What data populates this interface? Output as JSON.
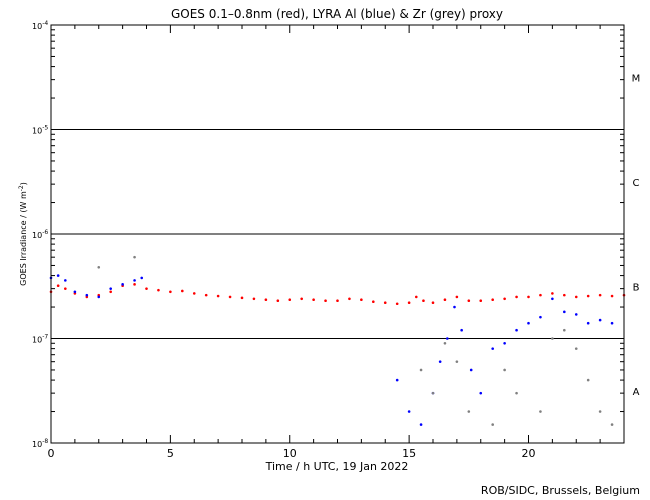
{
  "chart_data": {
    "type": "scatter",
    "title": "GOES 0.1–0.8nm (red), LYRA Al (blue) & Zr (grey) proxy",
    "xlabel": "Time / h UTC, 19 Jan 2022",
    "ylabel_main": "GOES Irradiance / (W m",
    "ylabel_sup": "-2",
    "ylabel_tail": ")",
    "xlim": [
      0,
      24
    ],
    "ylim_log10": [
      -8,
      -4
    ],
    "yscale": "log",
    "x_ticks": [
      {
        "value": 0,
        "label": "0"
      },
      {
        "value": 5,
        "label": "5"
      },
      {
        "value": 10,
        "label": "10"
      },
      {
        "value": 15,
        "label": "15"
      },
      {
        "value": 20,
        "label": "20"
      }
    ],
    "y_ticks": [
      {
        "exp": -4,
        "base": "10",
        "sup": "-4"
      },
      {
        "exp": -5,
        "base": "10",
        "sup": "-5"
      },
      {
        "exp": -6,
        "base": "10",
        "sup": "-6"
      },
      {
        "exp": -7,
        "base": "10",
        "sup": "-7"
      },
      {
        "exp": -8,
        "base": "10",
        "sup": "-8"
      }
    ],
    "flare_class_lines_log10": [
      -5,
      -6,
      -7
    ],
    "flare_classes": [
      {
        "label": "M",
        "log10_mid": -4.5
      },
      {
        "label": "C",
        "log10_mid": -5.5
      },
      {
        "label": "B",
        "log10_mid": -6.5
      },
      {
        "label": "A",
        "log10_mid": -7.5
      }
    ],
    "series": [
      {
        "color": "#ff0000",
        "points": [
          [
            0,
            2.8e-07
          ],
          [
            0.3,
            3.2e-07
          ],
          [
            0.6,
            3e-07
          ],
          [
            1.0,
            2.7e-07
          ],
          [
            1.5,
            2.5e-07
          ],
          [
            2.0,
            2.6e-07
          ],
          [
            2.5,
            2.8e-07
          ],
          [
            3.0,
            3.2e-07
          ],
          [
            3.5,
            3.3e-07
          ],
          [
            4.0,
            3e-07
          ],
          [
            4.5,
            2.9e-07
          ],
          [
            5.0,
            2.8e-07
          ],
          [
            5.5,
            2.85e-07
          ],
          [
            6.0,
            2.7e-07
          ],
          [
            6.5,
            2.6e-07
          ],
          [
            7.0,
            2.55e-07
          ],
          [
            7.5,
            2.5e-07
          ],
          [
            8.0,
            2.45e-07
          ],
          [
            8.5,
            2.4e-07
          ],
          [
            9.0,
            2.35e-07
          ],
          [
            9.5,
            2.3e-07
          ],
          [
            10.0,
            2.35e-07
          ],
          [
            10.5,
            2.4e-07
          ],
          [
            11.0,
            2.35e-07
          ],
          [
            11.5,
            2.3e-07
          ],
          [
            12.0,
            2.3e-07
          ],
          [
            12.5,
            2.4e-07
          ],
          [
            13.0,
            2.35e-07
          ],
          [
            13.5,
            2.25e-07
          ],
          [
            14.0,
            2.2e-07
          ],
          [
            14.5,
            2.15e-07
          ],
          [
            15.0,
            2.2e-07
          ],
          [
            15.3,
            2.5e-07
          ],
          [
            15.6,
            2.3e-07
          ],
          [
            16.0,
            2.2e-07
          ],
          [
            16.5,
            2.35e-07
          ],
          [
            17.0,
            2.5e-07
          ],
          [
            17.5,
            2.3e-07
          ],
          [
            18.0,
            2.3e-07
          ],
          [
            18.5,
            2.35e-07
          ],
          [
            19.0,
            2.4e-07
          ],
          [
            19.5,
            2.5e-07
          ],
          [
            20.0,
            2.5e-07
          ],
          [
            20.5,
            2.6e-07
          ],
          [
            21.0,
            2.7e-07
          ],
          [
            21.5,
            2.6e-07
          ],
          [
            22.0,
            2.5e-07
          ],
          [
            22.5,
            2.55e-07
          ],
          [
            23.0,
            2.6e-07
          ],
          [
            23.5,
            2.55e-07
          ],
          [
            24.0,
            2.6e-07
          ]
        ]
      },
      {
        "color": "#0000ff",
        "points": [
          [
            0,
            3.8e-07
          ],
          [
            0.3,
            4e-07
          ],
          [
            0.6,
            3.6e-07
          ],
          [
            1.0,
            2.8e-07
          ],
          [
            1.5,
            2.6e-07
          ],
          [
            2.0,
            2.5e-07
          ],
          [
            2.5,
            3e-07
          ],
          [
            3.0,
            3.3e-07
          ],
          [
            3.5,
            3.6e-07
          ],
          [
            3.8,
            3.8e-07
          ],
          [
            14.5,
            4e-08
          ],
          [
            15.0,
            2e-08
          ],
          [
            15.5,
            1.5e-08
          ],
          [
            16.0,
            3e-08
          ],
          [
            16.3,
            6e-08
          ],
          [
            16.6,
            1e-07
          ],
          [
            16.9,
            2e-07
          ],
          [
            17.2,
            1.2e-07
          ],
          [
            17.6,
            5e-08
          ],
          [
            18.0,
            3e-08
          ],
          [
            18.5,
            8e-08
          ],
          [
            19.0,
            9e-08
          ],
          [
            19.5,
            1.2e-07
          ],
          [
            20.0,
            1.4e-07
          ],
          [
            20.5,
            1.6e-07
          ],
          [
            21.0,
            2.4e-07
          ],
          [
            21.5,
            1.8e-07
          ],
          [
            22.0,
            1.7e-07
          ],
          [
            22.5,
            1.4e-07
          ],
          [
            23.0,
            1.5e-07
          ],
          [
            23.5,
            1.4e-07
          ]
        ]
      },
      {
        "color": "#808080",
        "points": [
          [
            2.0,
            4.8e-07
          ],
          [
            3.5,
            6e-07
          ],
          [
            15.5,
            5e-08
          ],
          [
            16.0,
            3e-08
          ],
          [
            16.5,
            9e-08
          ],
          [
            17.0,
            6e-08
          ],
          [
            17.5,
            2e-08
          ],
          [
            18.5,
            1.5e-08
          ],
          [
            19.0,
            5e-08
          ],
          [
            19.5,
            3e-08
          ],
          [
            20.5,
            2e-08
          ],
          [
            21.0,
            1e-07
          ],
          [
            21.5,
            1.2e-07
          ],
          [
            22.0,
            8e-08
          ],
          [
            22.5,
            4e-08
          ],
          [
            23.0,
            2e-08
          ],
          [
            23.5,
            1.5e-08
          ]
        ]
      }
    ]
  },
  "footer": {
    "credit": "ROB/SIDC, Brussels, Belgium"
  }
}
